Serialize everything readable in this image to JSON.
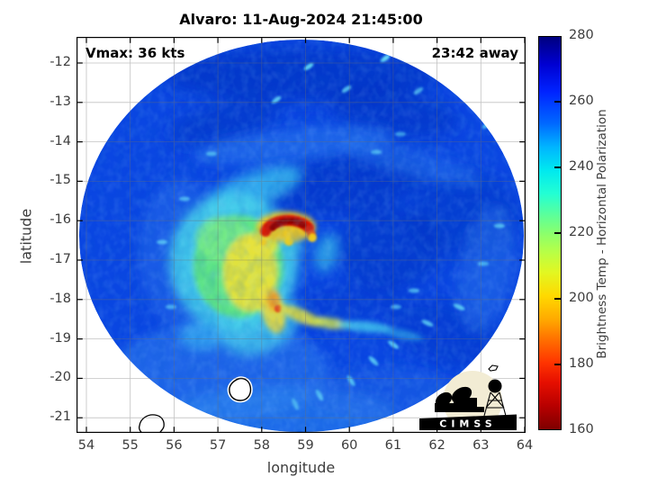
{
  "figure": {
    "title": "Alvaro: 11-Aug-2024 21:45:00",
    "annotations": {
      "vmax": "Vmax: 36 kts",
      "eta": "23:42 away"
    },
    "x_axis": {
      "label": "longitude",
      "ticks": [
        54,
        55,
        56,
        57,
        58,
        59,
        60,
        61,
        62,
        63,
        64
      ]
    },
    "y_axis": {
      "label": "latitude",
      "ticks": [
        -12,
        -13,
        -14,
        -15,
        -16,
        -17,
        -18,
        -19,
        -20,
        -21
      ]
    },
    "colorbar": {
      "label": "Brightness Temp - Horizontal Polarization",
      "ticks": [
        280,
        260,
        240,
        220,
        200,
        180,
        160
      ],
      "min": 160,
      "max": 280,
      "colormap": "jet-reversed (blue=warm/280K, red=cold/160K)"
    },
    "logo": {
      "text": "CIMSS"
    }
  },
  "colors": {
    "background_swath_blue": "#0a46e2",
    "dark_blue_patches": "#0430c0",
    "cyan_cloud": "#3fd0e8",
    "green_core": "#63e87b",
    "yellow_core": "#e8e23a",
    "orange_accent": "#f59a1a",
    "red_burst": "#d81800",
    "dark_red_burst": "#8f0400",
    "gridline": "#6e6e6e",
    "tick_label": "#3c3c3c",
    "logo_cream": "#f2ecd4"
  },
  "chart_data": {
    "type": "heatmap",
    "title": "Alvaro: 11-Aug-2024 21:45:00",
    "xlabel": "longitude",
    "ylabel": "latitude",
    "xlim": [
      53.77,
      64.02
    ],
    "ylim": [
      -21.38,
      -11.34
    ],
    "xticks": [
      54,
      55,
      56,
      57,
      58,
      59,
      60,
      61,
      62,
      63,
      64
    ],
    "yticks": [
      -12,
      -13,
      -14,
      -15,
      -16,
      -17,
      -18,
      -19,
      -20,
      -21
    ],
    "grid": true,
    "colorbar": {
      "label": "Brightness Temp - Horizontal Polarization",
      "range_k": [
        160,
        280
      ],
      "ticks": [
        160,
        180,
        200,
        220,
        240,
        260,
        280
      ]
    },
    "swath": {
      "shape": "circular",
      "center_lon": 58.9,
      "center_lat": -16.4,
      "radius_deg": 5.07
    },
    "annotations": [
      {
        "text": "Vmax: 36 kts",
        "position": "top-left"
      },
      {
        "text": "23:42 away",
        "position": "top-right"
      }
    ],
    "features": [
      {
        "name": "eyewall convective burst (coldest Tb arc)",
        "lon_range": [
          58.1,
          59.2
        ],
        "lat_range": [
          -16.5,
          -15.9
        ],
        "tb_k": [
          160,
          195
        ]
      },
      {
        "name": "cold convective mass SW of center",
        "lon_range": [
          56.7,
          58.7
        ],
        "lat_range": [
          -18.8,
          -15.6
        ],
        "tb_k": [
          200,
          240
        ]
      },
      {
        "name": "curved rainband S/SE of center",
        "lon_range": [
          58.4,
          61.3
        ],
        "lat_range": [
          -19.5,
          -18.3
        ],
        "tb_k": [
          205,
          245
        ]
      },
      {
        "name": "background rain shield (bulk of swath)",
        "tb_k": [
          248,
          265
        ]
      },
      {
        "name": "storm center estimate",
        "lon": 58.9,
        "lat": -16.3
      }
    ],
    "land_overlays": [
      {
        "name": "Mauritius (white land mask, black coast)",
        "lon": 57.5,
        "lat": -20.3
      },
      {
        "name": "Reunion (coast outline)",
        "lon": 55.5,
        "lat": -21.1
      },
      {
        "name": "Rodrigues (small outline)",
        "lon": 63.3,
        "lat": -19.7
      }
    ]
  }
}
